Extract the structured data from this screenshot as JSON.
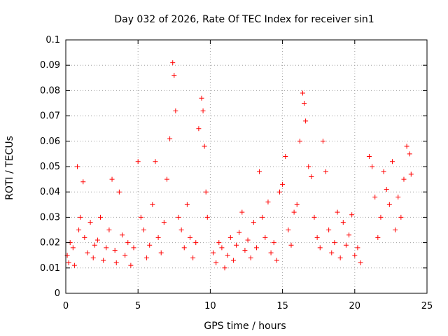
{
  "chart_data": {
    "type": "scatter",
    "title": "Day 032 of 2026, Rate Of TEC Index for receiver sin1",
    "xlabel": "GPS time / hours",
    "ylabel": "ROTI / TECUs",
    "xlim": [
      0,
      25
    ],
    "ylim": [
      0,
      0.1
    ],
    "xticks": [
      0,
      5,
      10,
      15,
      20,
      25
    ],
    "xtick_labels": [
      "0",
      "5",
      "10",
      "15",
      "20",
      "25"
    ],
    "yticks": [
      0,
      0.01,
      0.02,
      0.03,
      0.04,
      0.05,
      0.06,
      0.07,
      0.08,
      0.09,
      0.1
    ],
    "ytick_labels": [
      "0",
      "0.01",
      "0.02",
      "0.03",
      "0.04",
      "0.05",
      "0.06",
      "0.07",
      "0.08",
      "0.09",
      "0.1"
    ],
    "grid": true,
    "marker": "+",
    "marker_color": "#ff0000",
    "series": [
      {
        "name": "ROTI",
        "x": [
          0.1,
          0.2,
          0.3,
          0.5,
          0.6,
          0.8,
          0.9,
          1.0,
          1.2,
          1.3,
          1.5,
          1.7,
          1.9,
          2.0,
          2.2,
          2.4,
          2.6,
          2.8,
          3.0,
          3.2,
          3.4,
          3.5,
          3.7,
          3.9,
          4.1,
          4.3,
          4.5,
          4.7,
          5.0,
          5.2,
          5.4,
          5.6,
          5.8,
          6.0,
          6.2,
          6.4,
          6.6,
          6.8,
          7.0,
          7.2,
          7.4,
          7.5,
          7.6,
          7.8,
          8.0,
          8.2,
          8.4,
          8.6,
          8.8,
          9.0,
          9.2,
          9.4,
          9.5,
          9.6,
          9.7,
          9.8,
          10.2,
          10.4,
          10.6,
          10.8,
          11.0,
          11.2,
          11.4,
          11.6,
          11.8,
          12.0,
          12.2,
          12.4,
          12.6,
          12.8,
          13.0,
          13.2,
          13.4,
          13.6,
          13.8,
          14.0,
          14.2,
          14.4,
          14.6,
          14.8,
          15.0,
          15.2,
          15.4,
          15.6,
          15.8,
          16.0,
          16.2,
          16.4,
          16.5,
          16.6,
          16.8,
          17.0,
          17.2,
          17.4,
          17.6,
          17.8,
          18.0,
          18.2,
          18.4,
          18.6,
          18.8,
          19.0,
          19.2,
          19.4,
          19.6,
          19.8,
          20.0,
          20.2,
          20.4,
          21.0,
          21.2,
          21.4,
          21.6,
          21.8,
          22.0,
          22.2,
          22.4,
          22.6,
          22.8,
          23.0,
          23.2,
          23.4,
          23.6,
          23.8,
          23.9
        ],
        "y": [
          0.015,
          0.012,
          0.02,
          0.018,
          0.011,
          0.05,
          0.025,
          0.03,
          0.044,
          0.022,
          0.016,
          0.028,
          0.014,
          0.019,
          0.021,
          0.03,
          0.013,
          0.018,
          0.025,
          0.045,
          0.017,
          0.012,
          0.04,
          0.023,
          0.015,
          0.02,
          0.011,
          0.018,
          0.052,
          0.03,
          0.025,
          0.014,
          0.019,
          0.035,
          0.052,
          0.022,
          0.016,
          0.028,
          0.045,
          0.061,
          0.091,
          0.086,
          0.072,
          0.03,
          0.025,
          0.018,
          0.035,
          0.022,
          0.014,
          0.02,
          0.065,
          0.077,
          0.072,
          0.058,
          0.04,
          0.03,
          0.016,
          0.012,
          0.02,
          0.018,
          0.01,
          0.015,
          0.022,
          0.013,
          0.019,
          0.024,
          0.032,
          0.017,
          0.021,
          0.014,
          0.028,
          0.018,
          0.048,
          0.03,
          0.022,
          0.036,
          0.016,
          0.02,
          0.013,
          0.04,
          0.043,
          0.054,
          0.025,
          0.019,
          0.032,
          0.035,
          0.06,
          0.079,
          0.075,
          0.068,
          0.05,
          0.046,
          0.03,
          0.022,
          0.018,
          0.06,
          0.048,
          0.025,
          0.016,
          0.02,
          0.032,
          0.014,
          0.028,
          0.019,
          0.023,
          0.031,
          0.015,
          0.018,
          0.012,
          0.054,
          0.05,
          0.038,
          0.022,
          0.03,
          0.048,
          0.041,
          0.035,
          0.052,
          0.025,
          0.038,
          0.03,
          0.045,
          0.058,
          0.055,
          0.047
        ]
      }
    ]
  }
}
